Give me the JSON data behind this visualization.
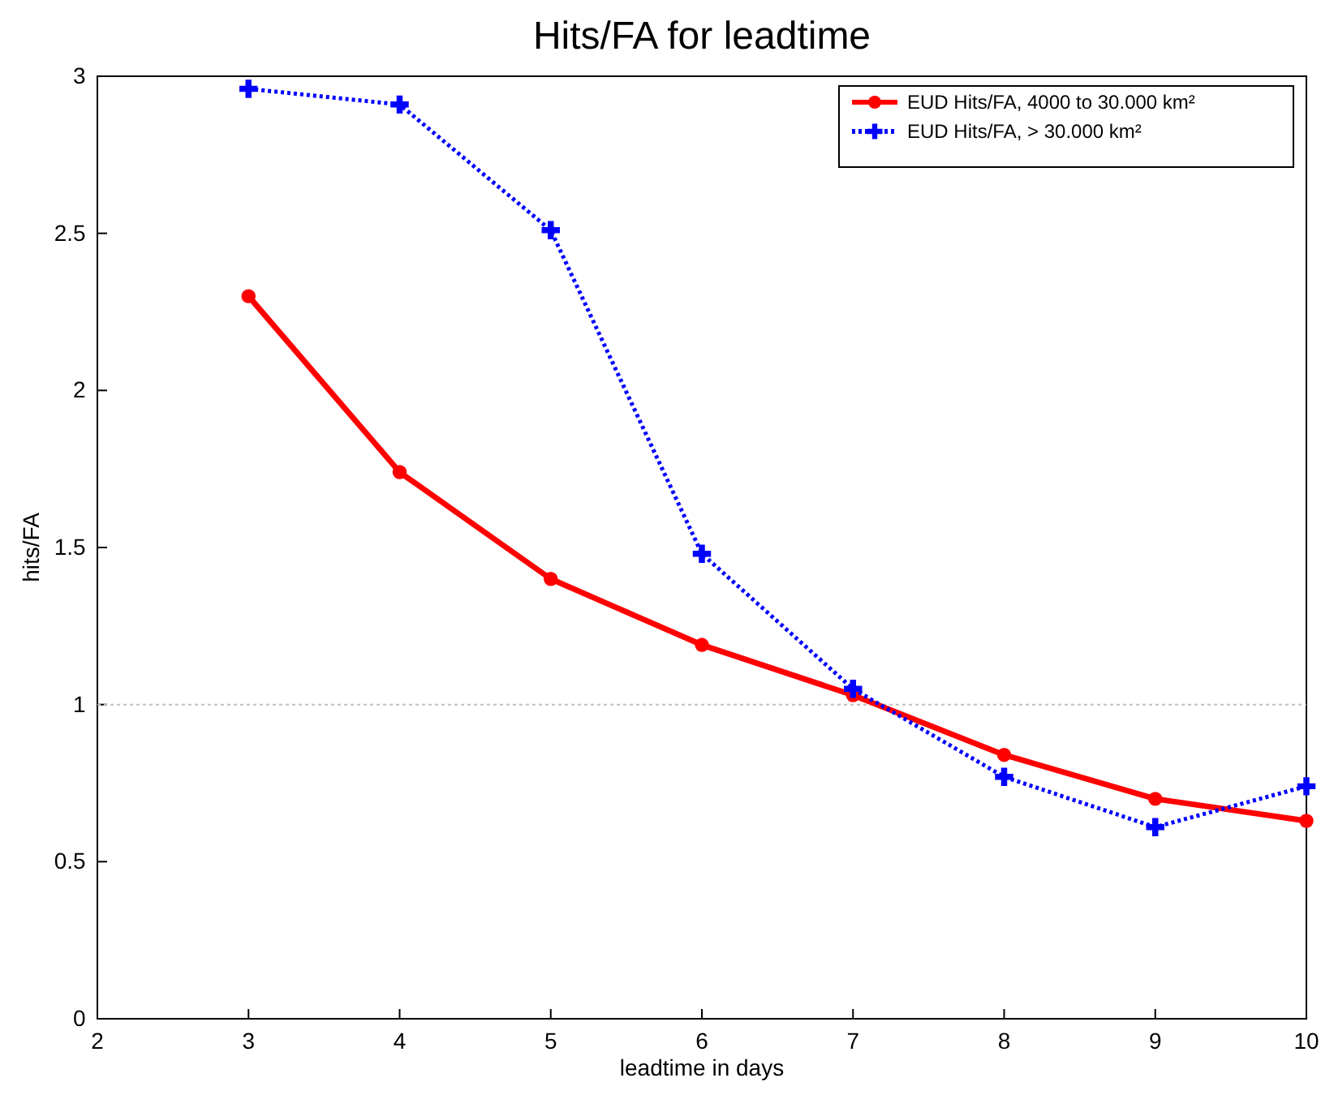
{
  "chart_data": {
    "type": "line",
    "title": "Hits/FA for leadtime",
    "xlabel": "leadtime in days",
    "ylabel": "hits/FA",
    "x": [
      3,
      4,
      5,
      6,
      7,
      8,
      9,
      10
    ],
    "series": [
      {
        "name": "EUD Hits/FA, 4000 to 30.000 km²",
        "color": "#ff0000",
        "marker": "circle",
        "line_style": "solid",
        "values": [
          2.3,
          1.74,
          1.4,
          1.19,
          1.03,
          0.84,
          0.7,
          0.63
        ]
      },
      {
        "name": "EUD Hits/FA, > 30.000 km²",
        "color": "#0000ff",
        "marker": "cross",
        "line_style": "dotted",
        "values": [
          2.96,
          2.91,
          2.51,
          1.48,
          1.05,
          0.77,
          0.61,
          0.74
        ]
      }
    ],
    "xlim": [
      2,
      10
    ],
    "xticks": [
      2,
      3,
      4,
      5,
      6,
      7,
      8,
      9,
      10
    ],
    "ylim": [
      0,
      3
    ],
    "yticks": [
      0,
      0.5,
      1,
      1.5,
      2,
      2.5,
      3
    ],
    "ref_lines": [
      {
        "axis": "y",
        "value": 1,
        "color": "#c0c0c0",
        "line_style": "dotted"
      }
    ],
    "legend": "top right"
  }
}
